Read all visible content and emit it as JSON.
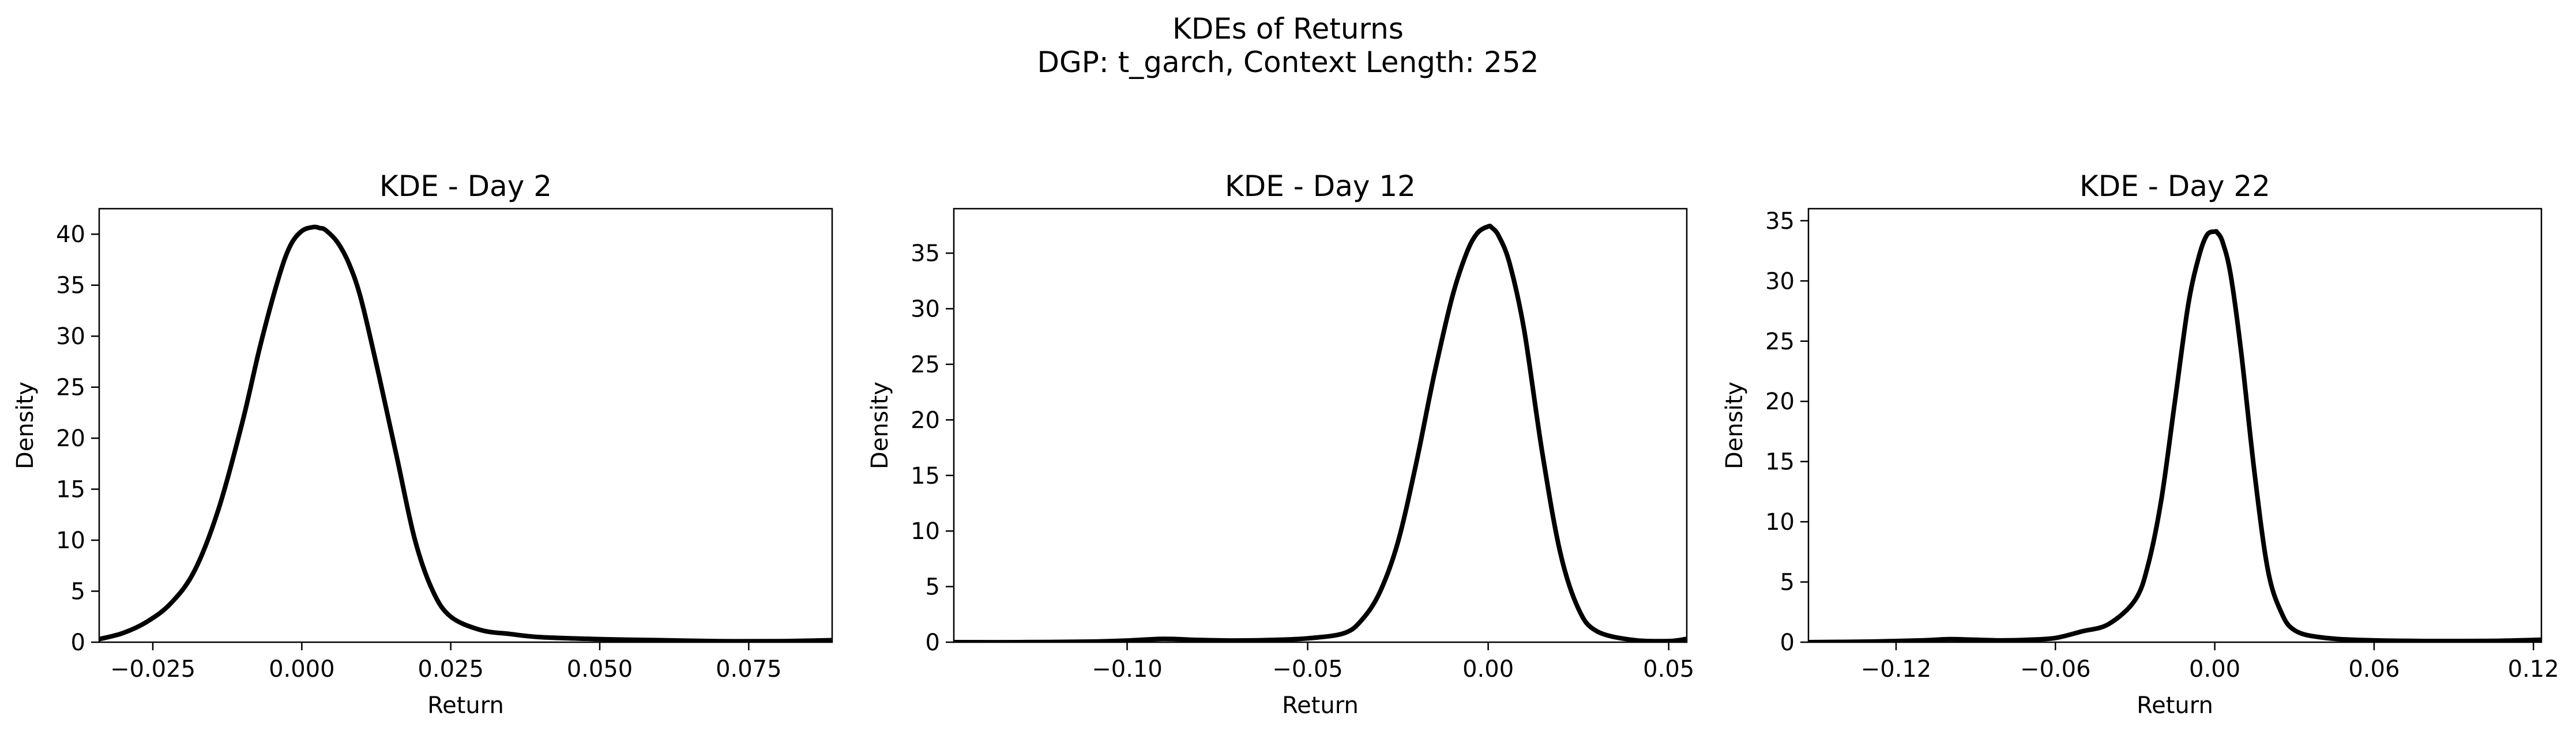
{
  "figure": {
    "title": "KDEs of Returns",
    "subtitle": "DGP: t_garch, Context Length: 252"
  },
  "chart_data": [
    {
      "type": "line",
      "title": "KDE - Day 2",
      "xlabel": "Return",
      "ylabel": "Density",
      "xlim": [
        -0.034,
        0.089
      ],
      "ylim": [
        0,
        42.5
      ],
      "xticks": [
        -0.025,
        0.0,
        0.025,
        0.05,
        0.075
      ],
      "xtick_labels": [
        "−0.025",
        "0.000",
        "0.025",
        "0.050",
        "0.075"
      ],
      "yticks": [
        0,
        5,
        10,
        15,
        20,
        25,
        30,
        35,
        40
      ],
      "ytick_labels": [
        "0",
        "5",
        "10",
        "15",
        "20",
        "25",
        "30",
        "35",
        "40"
      ],
      "grid": false,
      "line_color": "#000000",
      "series": [
        {
          "x": [
            -0.034,
            -0.03,
            -0.026,
            -0.022,
            -0.018,
            -0.014,
            -0.01,
            -0.007,
            -0.004,
            -0.002,
            0.0,
            0.002,
            0.003,
            0.004,
            0.006,
            0.008,
            0.01,
            0.013,
            0.016,
            0.019,
            0.022,
            0.025,
            0.03,
            0.035,
            0.04,
            0.05,
            0.06,
            0.07,
            0.08,
            0.089
          ],
          "y": [
            0.3,
            0.9,
            2.0,
            3.8,
            7.0,
            13.0,
            21.5,
            29.0,
            35.5,
            38.8,
            40.3,
            40.7,
            40.6,
            40.4,
            39.2,
            37.0,
            33.5,
            26.0,
            18.0,
            10.0,
            5.0,
            2.5,
            1.2,
            0.8,
            0.5,
            0.3,
            0.2,
            0.1,
            0.1,
            0.2
          ]
        }
      ]
    },
    {
      "type": "line",
      "title": "KDE - Day 12",
      "xlabel": "Return",
      "ylabel": "Density",
      "xlim": [
        -0.148,
        0.055
      ],
      "ylim": [
        0,
        39.0
      ],
      "xticks": [
        -0.1,
        -0.05,
        0.0,
        0.05
      ],
      "xtick_labels": [
        "−0.10",
        "−0.05",
        "0.00",
        "0.05"
      ],
      "yticks": [
        0,
        5,
        10,
        15,
        20,
        25,
        30,
        35
      ],
      "ytick_labels": [
        "0",
        "5",
        "10",
        "15",
        "20",
        "25",
        "30",
        "35"
      ],
      "grid": false,
      "line_color": "#000000",
      "series": [
        {
          "x": [
            -0.148,
            -0.13,
            -0.11,
            -0.1,
            -0.09,
            -0.08,
            -0.07,
            -0.06,
            -0.05,
            -0.04,
            -0.035,
            -0.03,
            -0.025,
            -0.02,
            -0.015,
            -0.01,
            -0.006,
            -0.003,
            0.0,
            0.001,
            0.003,
            0.006,
            0.01,
            0.015,
            0.02,
            0.025,
            0.03,
            0.04,
            0.05,
            0.055
          ],
          "y": [
            0.0,
            0.0,
            0.05,
            0.15,
            0.3,
            0.2,
            0.15,
            0.2,
            0.35,
            0.8,
            2.0,
            4.5,
            9.0,
            16.0,
            24.0,
            31.0,
            35.0,
            36.8,
            37.4,
            37.3,
            36.5,
            34.0,
            28.0,
            17.0,
            8.0,
            3.0,
            1.0,
            0.2,
            0.1,
            0.3
          ]
        }
      ]
    },
    {
      "type": "line",
      "title": "KDE - Day 22",
      "xlabel": "Return",
      "ylabel": "Density",
      "xlim": [
        -0.153,
        0.123
      ],
      "ylim": [
        0,
        36.0
      ],
      "xticks": [
        -0.12,
        -0.06,
        0.0,
        0.06,
        0.12
      ],
      "xtick_labels": [
        "−0.12",
        "−0.06",
        "0.00",
        "0.06",
        "0.12"
      ],
      "yticks": [
        0,
        5,
        10,
        15,
        20,
        25,
        30,
        35
      ],
      "ytick_labels": [
        "0",
        "5",
        "10",
        "15",
        "20",
        "25",
        "30",
        "35"
      ],
      "grid": false,
      "line_color": "#000000",
      "series": [
        {
          "x": [
            -0.153,
            -0.13,
            -0.11,
            -0.1,
            -0.09,
            -0.08,
            -0.07,
            -0.06,
            -0.05,
            -0.04,
            -0.03,
            -0.025,
            -0.02,
            -0.015,
            -0.01,
            -0.006,
            -0.003,
            0.0,
            0.001,
            0.003,
            0.006,
            0.01,
            0.015,
            0.02,
            0.025,
            0.03,
            0.04,
            0.06,
            0.1,
            0.123
          ],
          "y": [
            0.0,
            0.05,
            0.15,
            0.25,
            0.2,
            0.15,
            0.2,
            0.35,
            0.9,
            1.5,
            3.5,
            6.5,
            12.0,
            20.0,
            28.0,
            32.0,
            33.8,
            34.1,
            34.0,
            33.2,
            30.5,
            24.0,
            14.0,
            6.0,
            2.5,
            1.0,
            0.4,
            0.15,
            0.1,
            0.2
          ]
        }
      ]
    }
  ]
}
